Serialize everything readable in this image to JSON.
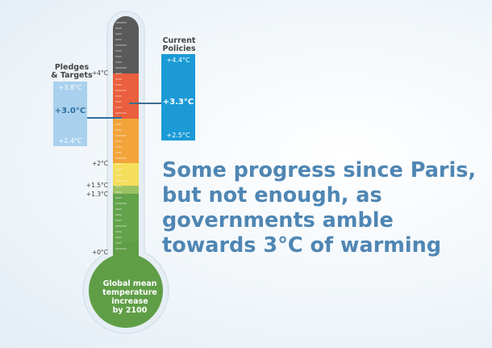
{
  "headline": {
    "line1": "Some progress since Paris,",
    "line2": "but not enough, as",
    "line3": "governments amble",
    "line4": "towards 3°C of warming"
  },
  "bulb": {
    "line1": "Global mean",
    "line2": "temperature",
    "line3": "increase",
    "line4": "by 2100"
  },
  "scale": {
    "ticks": [
      {
        "label": "+4°C",
        "value": 4.0
      },
      {
        "label": "+2°C",
        "value": 2.0
      },
      {
        "label": "+1.5°C",
        "value": 1.5
      },
      {
        "label": "+1.3°C",
        "value": 1.3
      },
      {
        "label": "+0°C",
        "value": 0.0
      }
    ]
  },
  "pledges": {
    "title_line1": "Pledges",
    "title_line2": "& Targets",
    "high": "+3.8°C",
    "mid": "+3.0°C",
    "low": "+2.4°C",
    "color": "#a9d1ee",
    "line_color": "#2d6f9f"
  },
  "policies": {
    "title_line1": "Current",
    "title_line2": "Policies",
    "high": "+4.4°C",
    "mid": "+3.3°C",
    "low": "+2.5°C",
    "color": "#1b9ad6",
    "line_color": "#3c6f8f"
  },
  "colors": {
    "tube_outline": "#e6eef5",
    "bulb_green": "#5f9e47",
    "band_green": "#63a34b",
    "band_light_green": "#9dc163",
    "band_yellow": "#f5de5c",
    "band_orange": "#f2a43b",
    "band_red": "#ea5f3d",
    "band_gray": "#5a5a5a",
    "headline": "#4f86b3"
  }
}
